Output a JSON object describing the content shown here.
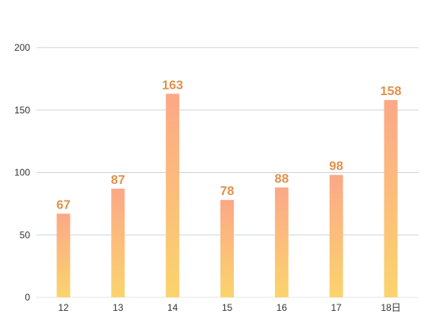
{
  "chart_data": {
    "type": "bar",
    "categories": [
      "12",
      "13",
      "14",
      "15",
      "16",
      "17",
      "18日"
    ],
    "values": [
      67,
      87,
      163,
      78,
      88,
      98,
      158
    ],
    "title": "",
    "xlabel": "",
    "ylabel": "",
    "ylim": [
      0,
      200
    ],
    "yticks": [
      0,
      50,
      100,
      150,
      200
    ],
    "grid": true,
    "data_labels": true,
    "colors": {
      "bar_top": "#fca887",
      "bar_bottom": "#fbd46d",
      "value_label": "#e0914a",
      "grid": "#c9d6df"
    }
  }
}
